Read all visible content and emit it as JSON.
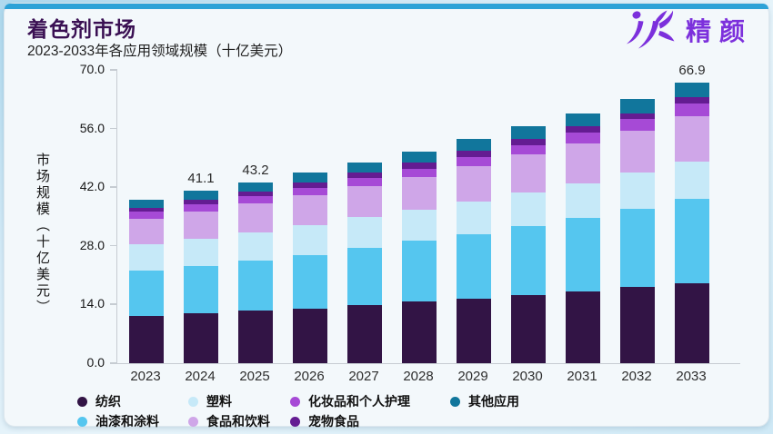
{
  "header": {
    "title": "着色剂市场",
    "subtitle": "2023-2033年各应用领域规模（十亿美元）",
    "brand": "精颜"
  },
  "colors": {
    "accent_bar": "#2da2d7",
    "title_text": "#3a1053",
    "brand_purple": "#7c30dc",
    "axis_line": "#c6ccd2"
  },
  "chart_data": {
    "type": "bar",
    "stacked": true,
    "title": "着色剂市场",
    "subtitle": "2023-2033年各应用领域规模（十亿美元）",
    "ylabel": "市场规模（十亿美元）",
    "ylim": [
      0,
      70
    ],
    "yticks": [
      "0.0",
      "14.0",
      "28.0",
      "42.0",
      "56.0",
      "70.0"
    ],
    "grid": false,
    "legend_position": "bottom",
    "categories": [
      "2023",
      "2024",
      "2025",
      "2026",
      "2027",
      "2028",
      "2029",
      "2030",
      "2031",
      "2032",
      "2033"
    ],
    "series": [
      {
        "name": "纺织",
        "color": "#321445",
        "values": [
          11.3,
          11.9,
          12.5,
          13.1,
          13.9,
          14.7,
          15.4,
          16.3,
          17.2,
          18.1,
          19.1
        ]
      },
      {
        "name": "油漆和涂料",
        "color": "#55c6ef",
        "values": [
          10.8,
          11.4,
          12.1,
          12.8,
          13.6,
          14.5,
          15.4,
          16.4,
          17.4,
          18.7,
          20.1
        ]
      },
      {
        "name": "塑料",
        "color": "#c6e9f8",
        "values": [
          6.3,
          6.5,
          6.7,
          7.0,
          7.3,
          7.5,
          7.8,
          8.1,
          8.4,
          8.7,
          9.0
        ]
      },
      {
        "name": "食品和饮料",
        "color": "#cfa6e8",
        "values": [
          6.1,
          6.4,
          6.8,
          7.1,
          7.5,
          7.7,
          8.5,
          9.0,
          9.5,
          10.0,
          10.8
        ]
      },
      {
        "name": "化妆品和个人护理",
        "color": "#a64ad6",
        "values": [
          1.6,
          1.7,
          1.8,
          1.9,
          2.0,
          2.0,
          2.2,
          2.3,
          2.5,
          2.7,
          2.9
        ]
      },
      {
        "name": "宠物食品",
        "color": "#641c92",
        "values": [
          1.0,
          1.1,
          1.1,
          1.2,
          1.2,
          1.4,
          1.4,
          1.4,
          1.5,
          1.5,
          1.6
        ]
      },
      {
        "name": "其他应用",
        "color": "#11769c",
        "values": [
          2.0,
          2.1,
          2.2,
          2.4,
          2.5,
          2.7,
          2.8,
          3.0,
          3.2,
          3.3,
          3.4
        ]
      }
    ],
    "total_labels": {
      "2024": "41.1",
      "2025": "43.2",
      "2033": "66.9"
    },
    "totals": [
      39.1,
      41.1,
      43.2,
      45.5,
      48.0,
      50.5,
      53.5,
      56.5,
      59.6,
      63.0,
      66.9
    ]
  },
  "legend": {
    "rows": [
      [
        0,
        2,
        4,
        6
      ],
      [
        1,
        3,
        5
      ]
    ]
  }
}
